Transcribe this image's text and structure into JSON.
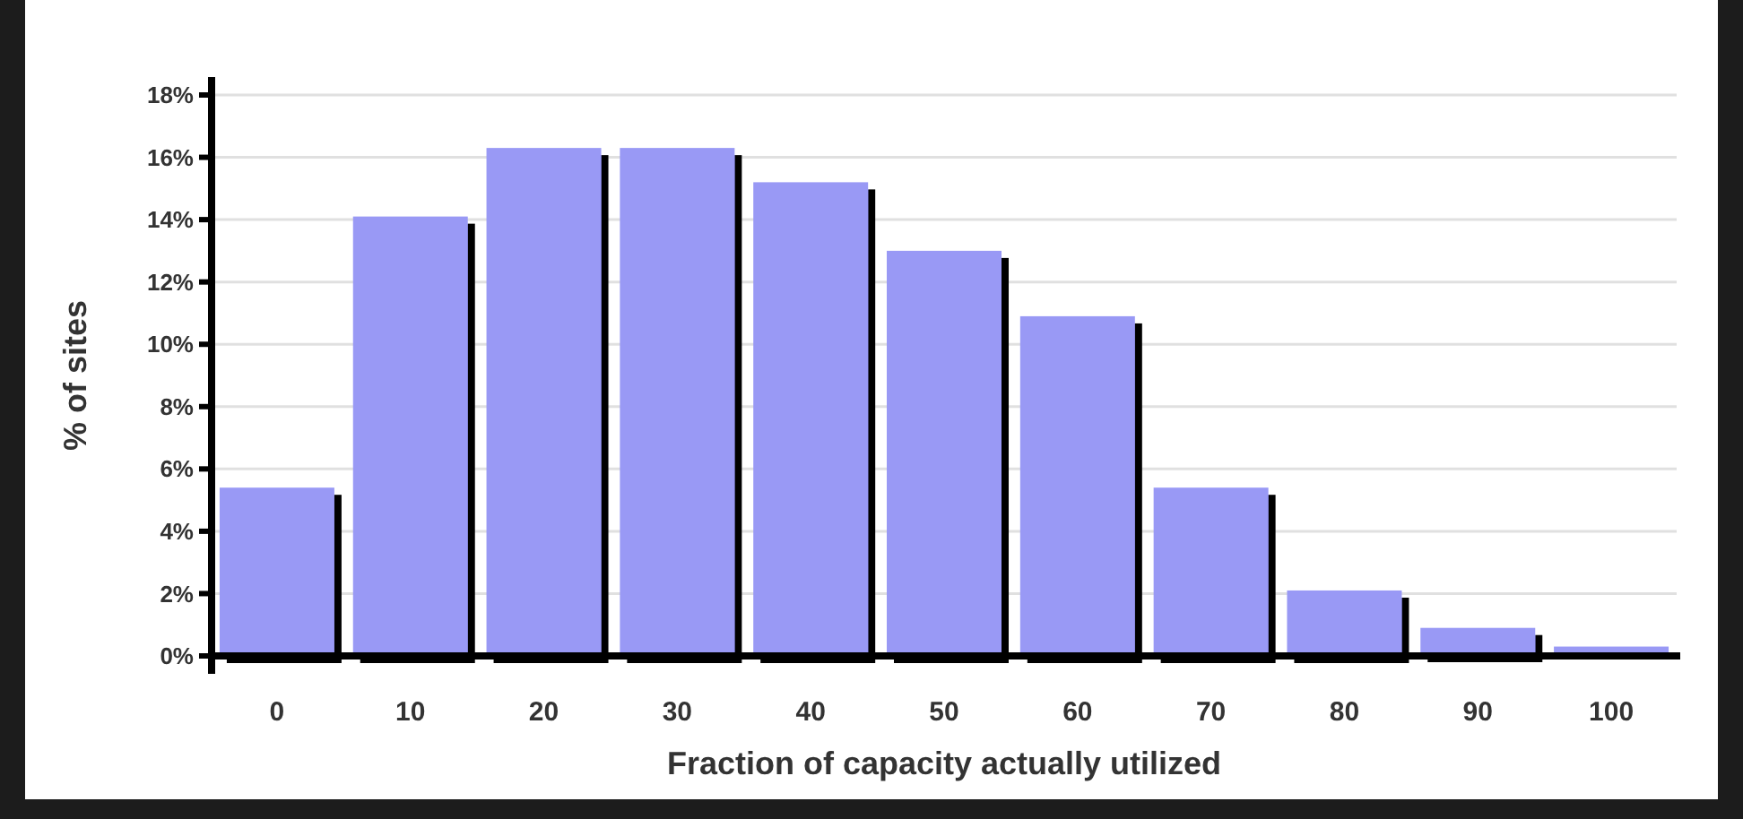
{
  "chart_data": {
    "type": "bar",
    "xlabel": "Fraction of capacity actually utilized",
    "ylabel": "% of sites",
    "categories": [
      "0",
      "10",
      "20",
      "30",
      "40",
      "50",
      "60",
      "70",
      "80",
      "90",
      "100"
    ],
    "values": [
      5.4,
      14.1,
      16.3,
      16.3,
      15.2,
      13.0,
      10.9,
      5.4,
      2.1,
      0.9,
      0.3
    ],
    "color": "#9999f5",
    "ylim": [
      0,
      18
    ],
    "yticks": [
      {
        "value": 0,
        "label": "0%"
      },
      {
        "value": 2,
        "label": "2%"
      },
      {
        "value": 4,
        "label": "4%"
      },
      {
        "value": 6,
        "label": "6%"
      },
      {
        "value": 8,
        "label": "8%"
      },
      {
        "value": 10,
        "label": "10%"
      },
      {
        "value": 12,
        "label": "12%"
      },
      {
        "value": 14,
        "label": "14%"
      },
      {
        "value": 16,
        "label": "16%"
      },
      {
        "value": 18,
        "label": "18%"
      }
    ],
    "grid": "y"
  }
}
